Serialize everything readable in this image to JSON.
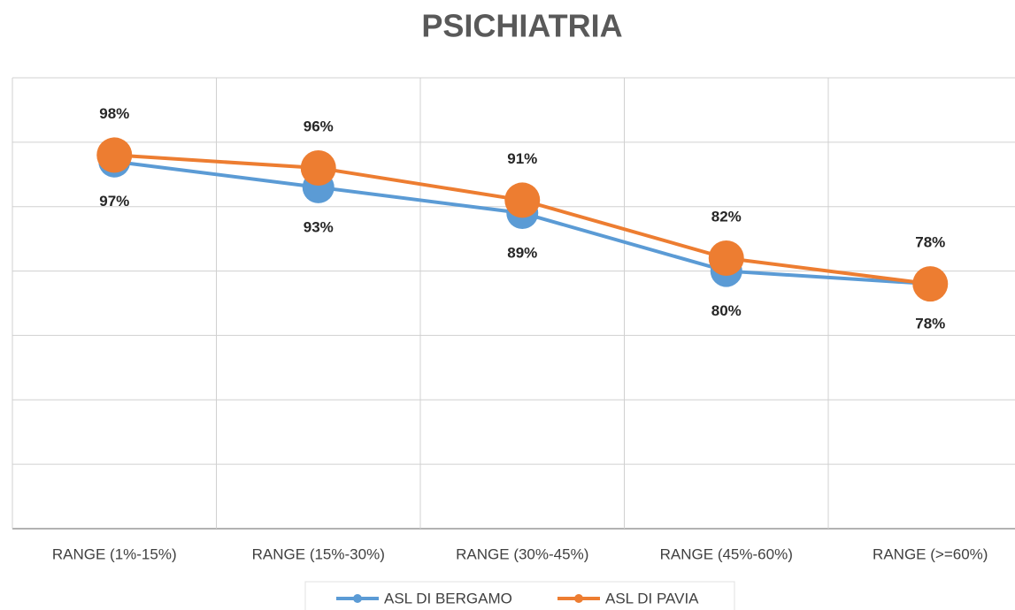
{
  "chart_data": {
    "type": "line",
    "title": "PSICHIATRIA",
    "categories": [
      "RANGE (1%-15%)",
      "RANGE (15%-30%)",
      "RANGE (30%-45%)",
      "RANGE (45%-60%)",
      "RANGE (>=60%)"
    ],
    "series": [
      {
        "name": "ASL DI BERGAMO",
        "color": "#5b9bd5",
        "values": [
          97,
          93,
          89,
          80,
          78
        ],
        "value_labels": [
          "97%",
          "93%",
          "89%",
          "80%",
          "78%"
        ]
      },
      {
        "name": "ASL DI PAVIA",
        "color": "#ed7d31",
        "values": [
          98,
          96,
          91,
          82,
          78
        ],
        "value_labels": [
          "98%",
          "96%",
          "91%",
          "82%",
          "78%"
        ]
      }
    ],
    "ylim": [
      40,
      110
    ],
    "yticks": [
      40,
      50,
      60,
      70,
      80,
      90,
      100,
      110
    ],
    "grid": true,
    "legend": "bottom"
  }
}
